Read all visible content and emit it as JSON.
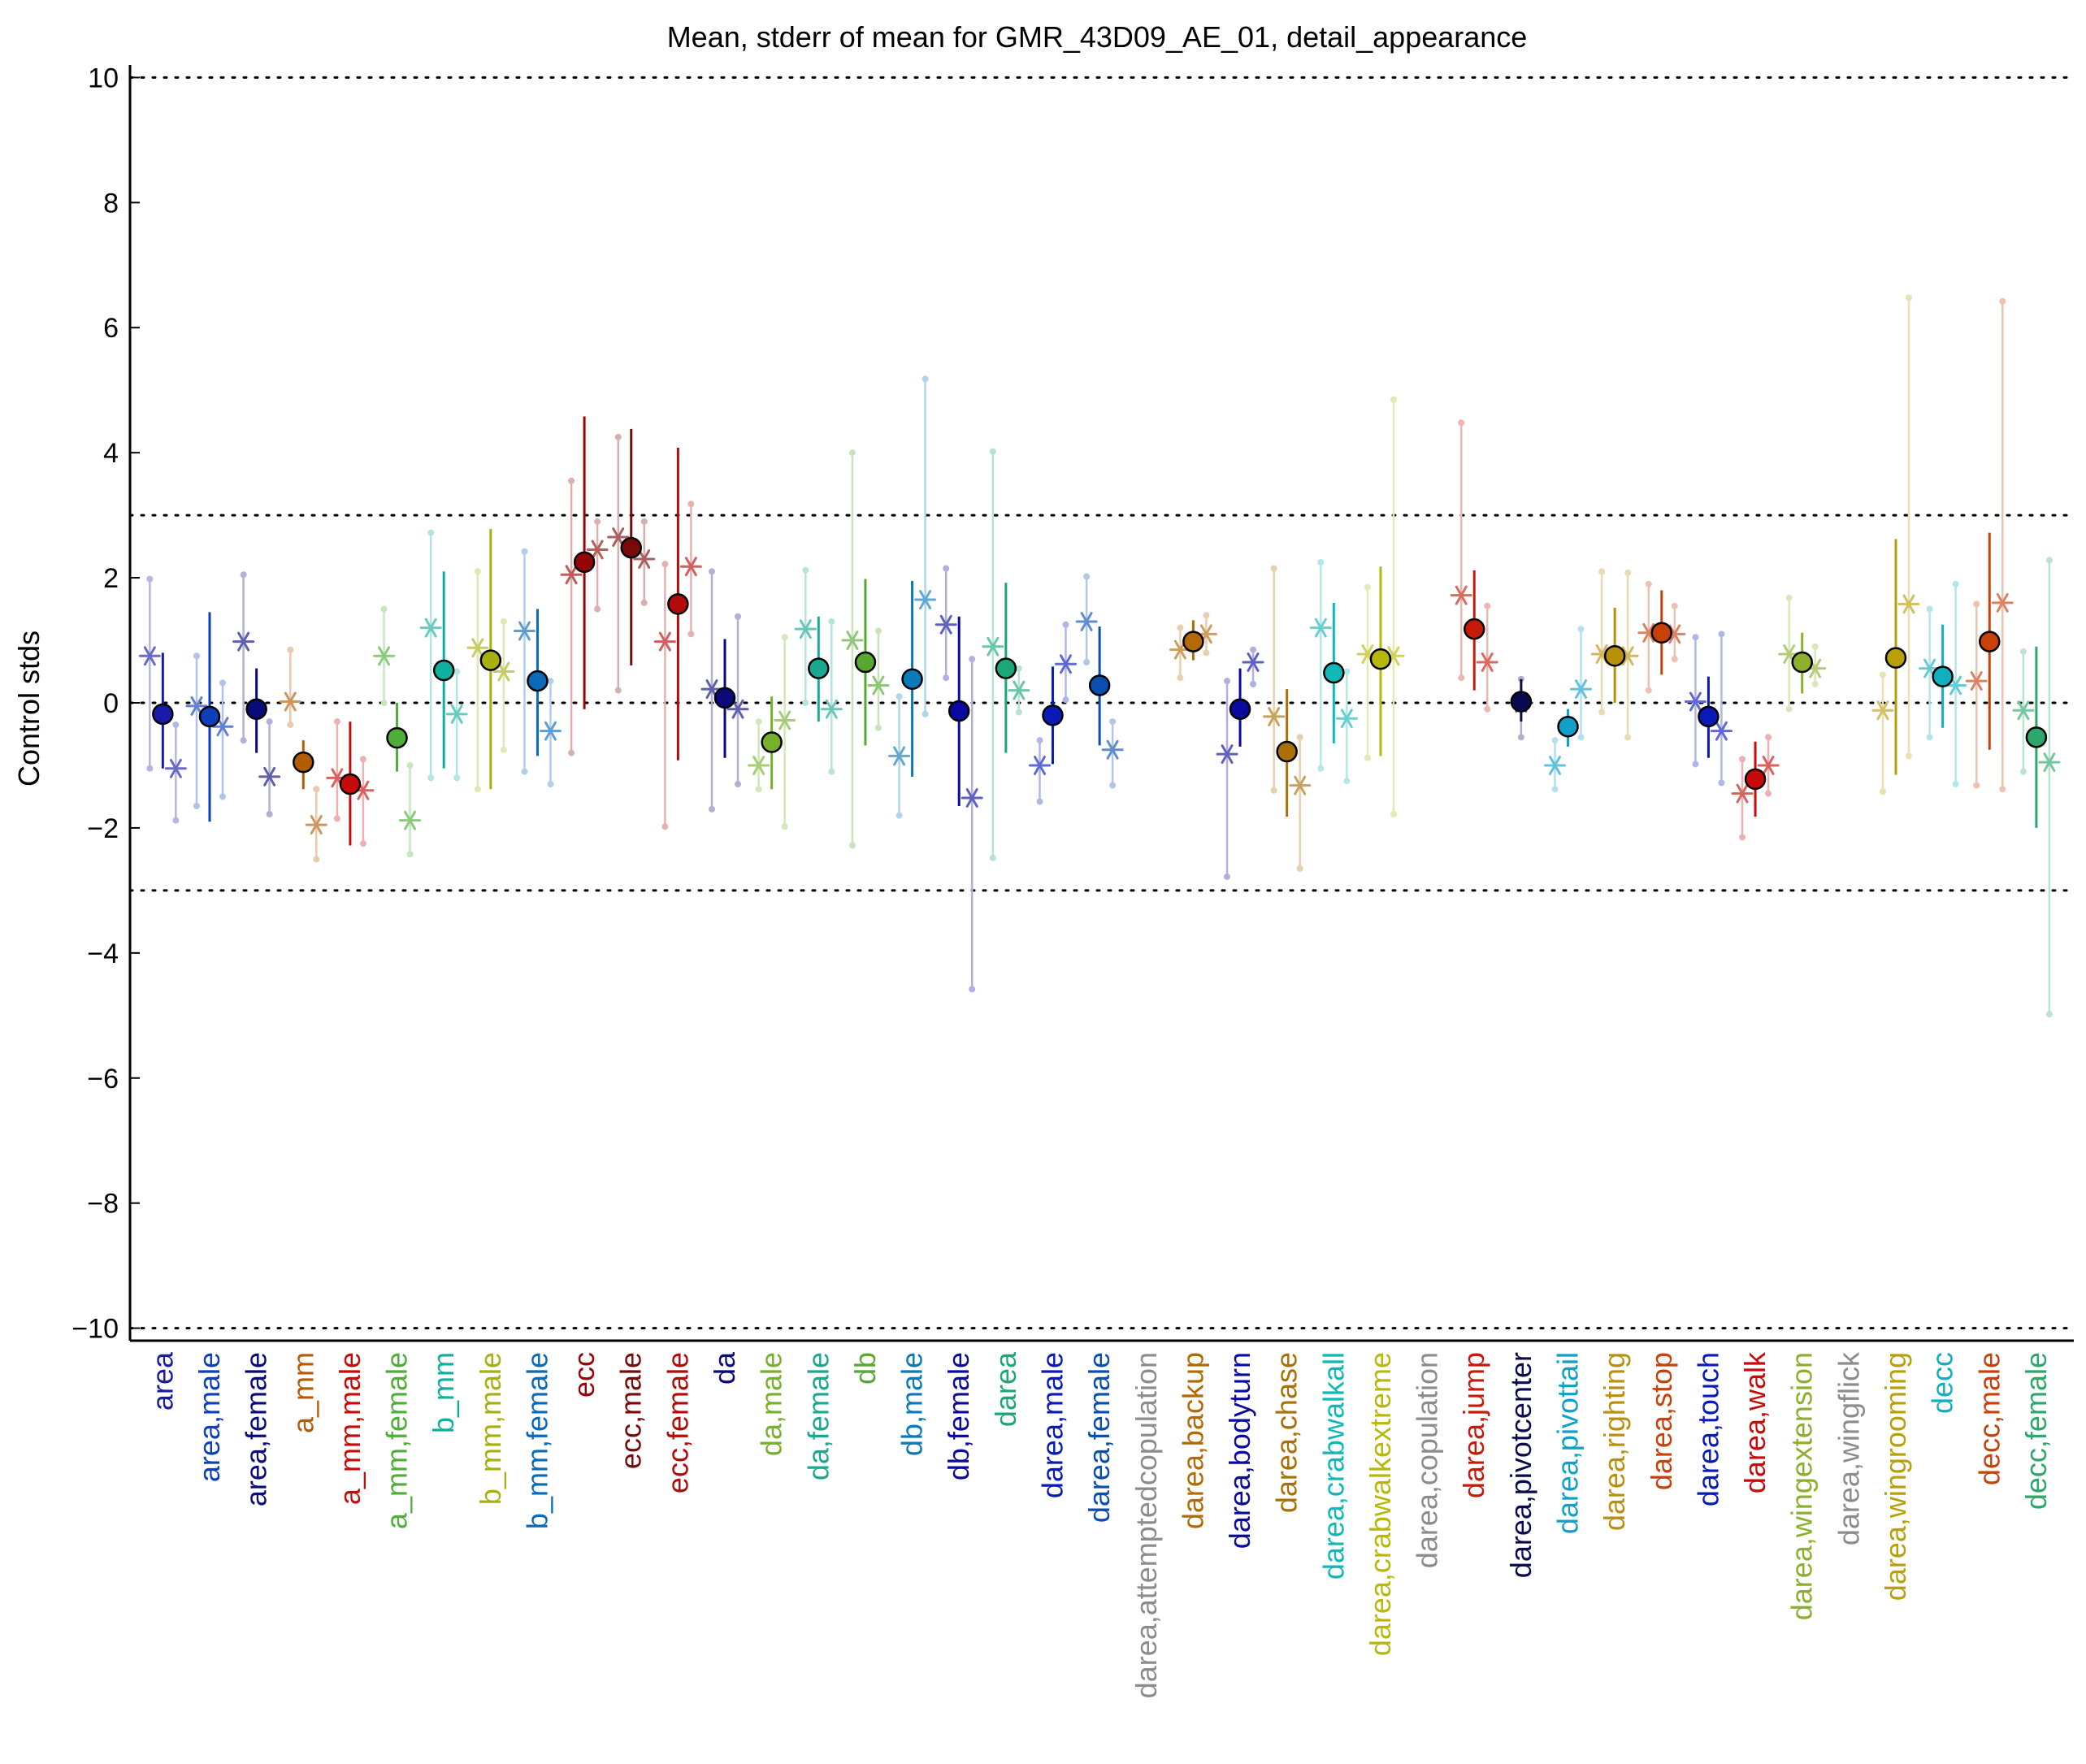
{
  "chart_data": {
    "type": "scatter",
    "title": "Mean, stderr of mean for GMR_43D09_AE_01, detail_appearance",
    "xlabel": "",
    "ylabel": "Control stds",
    "ylim": [
      -10.2,
      10.2
    ],
    "yticks": [
      10,
      8,
      6,
      4,
      2,
      0,
      -2,
      -4,
      -6,
      -8,
      -10
    ],
    "ytick_labels": [
      "10",
      "8",
      "6",
      "4",
      "2",
      "0",
      "−2",
      "−4",
      "−6",
      "−8",
      "−10"
    ],
    "reference_lines": [
      10,
      3,
      0,
      -3,
      -10
    ],
    "categories": [
      {
        "label": "area",
        "color": "#1a1aa8",
        "mean": -0.18,
        "lo": -1.05,
        "hi": 0.8,
        "lines": [
          {
            "v": 0.75,
            "lo": -1.05,
            "hi": 1.98
          },
          {
            "v": -1.05,
            "lo": -1.88,
            "hi": -0.35
          }
        ]
      },
      {
        "label": "area,male",
        "color": "#0d3fb8",
        "mean": -0.22,
        "lo": -1.9,
        "hi": 1.45,
        "lines": [
          {
            "v": -0.05,
            "lo": -1.65,
            "hi": 0.75
          },
          {
            "v": -0.38,
            "lo": -1.5,
            "hi": 0.32
          }
        ]
      },
      {
        "label": "area,female",
        "color": "#0a0a7a",
        "mean": -0.1,
        "lo": -0.8,
        "hi": 0.55,
        "lines": [
          {
            "v": 0.98,
            "lo": -0.6,
            "hi": 2.05
          },
          {
            "v": -1.18,
            "lo": -1.78,
            "hi": -0.3
          }
        ]
      },
      {
        "label": "a_mm",
        "color": "#b35c05",
        "mean": -0.95,
        "lo": -1.38,
        "hi": -0.6,
        "lines": [
          {
            "v": 0.02,
            "lo": -0.35,
            "hi": 0.85
          },
          {
            "v": -1.95,
            "lo": -2.5,
            "hi": -1.38
          }
        ]
      },
      {
        "label": "a_mm,male",
        "color": "#c80a0a",
        "mean": -1.3,
        "lo": -2.28,
        "hi": -0.3,
        "lines": [
          {
            "v": -1.2,
            "lo": -1.85,
            "hi": -0.3
          },
          {
            "v": -1.4,
            "lo": -2.25,
            "hi": -0.9
          }
        ]
      },
      {
        "label": "a_mm,female",
        "color": "#4fae37",
        "mean": -0.56,
        "lo": -1.1,
        "hi": 0.0,
        "lines": [
          {
            "v": 0.75,
            "lo": 0.0,
            "hi": 1.5
          },
          {
            "v": -1.88,
            "lo": -2.42,
            "hi": -1.0
          }
        ]
      },
      {
        "label": "b_mm",
        "color": "#10b0a0",
        "mean": 0.52,
        "lo": -1.05,
        "hi": 2.1,
        "lines": [
          {
            "v": 1.2,
            "lo": -1.2,
            "hi": 2.72
          },
          {
            "v": -0.18,
            "lo": -1.2,
            "hi": 0.5
          }
        ]
      },
      {
        "label": "b_mm,male",
        "color": "#a6b010",
        "mean": 0.68,
        "lo": -1.38,
        "hi": 2.78,
        "lines": [
          {
            "v": 0.88,
            "lo": -1.38,
            "hi": 2.1
          },
          {
            "v": 0.5,
            "lo": -0.75,
            "hi": 1.3
          }
        ]
      },
      {
        "label": "b_mm,female",
        "color": "#0a6ab8",
        "mean": 0.35,
        "lo": -0.85,
        "hi": 1.5,
        "lines": [
          {
            "v": 1.15,
            "lo": -1.1,
            "hi": 2.42
          },
          {
            "v": -0.45,
            "lo": -1.3,
            "hi": 0.35
          }
        ]
      },
      {
        "label": "ecc",
        "color": "#960505",
        "mean": 2.25,
        "lo": -0.1,
        "hi": 4.58,
        "lines": [
          {
            "v": 2.05,
            "lo": -0.8,
            "hi": 3.55
          },
          {
            "v": 2.45,
            "lo": 1.5,
            "hi": 2.9
          }
        ]
      },
      {
        "label": "ecc,male",
        "color": "#7a0a0a",
        "mean": 2.48,
        "lo": 0.6,
        "hi": 4.38,
        "lines": [
          {
            "v": 2.65,
            "lo": 0.2,
            "hi": 4.25
          },
          {
            "v": 2.3,
            "lo": 1.6,
            "hi": 2.9
          }
        ]
      },
      {
        "label": "ecc,female",
        "color": "#b40a0a",
        "mean": 1.58,
        "lo": -0.92,
        "hi": 4.08,
        "lines": [
          {
            "v": 0.98,
            "lo": -1.98,
            "hi": 2.22
          },
          {
            "v": 2.18,
            "lo": 1.1,
            "hi": 3.18
          }
        ]
      },
      {
        "label": "da",
        "color": "#0a0a7a",
        "mean": 0.08,
        "lo": -0.88,
        "hi": 1.02,
        "lines": [
          {
            "v": 0.22,
            "lo": -1.7,
            "hi": 2.1
          },
          {
            "v": -0.1,
            "lo": -1.3,
            "hi": 1.38
          }
        ]
      },
      {
        "label": "da,male",
        "color": "#78b029",
        "mean": -0.63,
        "lo": -1.38,
        "hi": 0.1,
        "lines": [
          {
            "v": -1.0,
            "lo": -1.38,
            "hi": -0.3
          },
          {
            "v": -0.28,
            "lo": -1.98,
            "hi": 1.05
          }
        ]
      },
      {
        "label": "da,female",
        "color": "#1aa891",
        "mean": 0.55,
        "lo": -0.3,
        "hi": 1.38,
        "lines": [
          {
            "v": 1.18,
            "lo": 0.0,
            "hi": 2.12
          },
          {
            "v": -0.1,
            "lo": -1.1,
            "hi": 1.3
          }
        ]
      },
      {
        "label": "db",
        "color": "#57a82e",
        "mean": 0.65,
        "lo": -0.68,
        "hi": 1.98,
        "lines": [
          {
            "v": 1.0,
            "lo": -2.28,
            "hi": 4.0
          },
          {
            "v": 0.28,
            "lo": -0.4,
            "hi": 1.15
          }
        ]
      },
      {
        "label": "db,male",
        "color": "#0a7ab8",
        "mean": 0.38,
        "lo": -1.18,
        "hi": 1.95,
        "lines": [
          {
            "v": -0.85,
            "lo": -1.8,
            "hi": 0.1
          },
          {
            "v": 1.65,
            "lo": -0.18,
            "hi": 5.18
          }
        ]
      },
      {
        "label": "db,female",
        "color": "#0a0aa0",
        "mean": -0.13,
        "lo": -1.65,
        "hi": 1.38,
        "lines": [
          {
            "v": 1.25,
            "lo": 0.4,
            "hi": 2.15
          },
          {
            "v": -1.52,
            "lo": -4.58,
            "hi": 0.7
          }
        ]
      },
      {
        "label": "darea",
        "color": "#1aa878",
        "mean": 0.55,
        "lo": -0.8,
        "hi": 1.92,
        "lines": [
          {
            "v": 0.9,
            "lo": -2.48,
            "hi": 4.02
          },
          {
            "v": 0.2,
            "lo": -0.15,
            "hi": 0.55
          }
        ]
      },
      {
        "label": "darea,male",
        "color": "#0a1ab8",
        "mean": -0.2,
        "lo": -0.98,
        "hi": 0.58,
        "lines": [
          {
            "v": -1.0,
            "lo": -1.58,
            "hi": -0.6
          },
          {
            "v": 0.62,
            "lo": 0.05,
            "hi": 1.25
          }
        ]
      },
      {
        "label": "darea,female",
        "color": "#0a4fb0",
        "mean": 0.28,
        "lo": -0.68,
        "hi": 1.22,
        "lines": [
          {
            "v": 1.3,
            "lo": 0.65,
            "hi": 2.02
          },
          {
            "v": -0.75,
            "lo": -1.32,
            "hi": -0.3
          }
        ]
      },
      {
        "label": "darea,attemptedcopulation",
        "color": "#8c8c8c",
        "mean": null,
        "lo": null,
        "hi": null,
        "lines": []
      },
      {
        "label": "darea,backup",
        "color": "#b36a05",
        "mean": 0.98,
        "lo": 0.68,
        "hi": 1.32,
        "lines": [
          {
            "v": 0.85,
            "lo": 0.4,
            "hi": 1.2
          },
          {
            "v": 1.1,
            "lo": 0.8,
            "hi": 1.4
          }
        ]
      },
      {
        "label": "darea,bodyturn",
        "color": "#0a0aa0",
        "mean": -0.1,
        "lo": -0.7,
        "hi": 0.55,
        "lines": [
          {
            "v": -0.82,
            "lo": -2.78,
            "hi": 0.35
          },
          {
            "v": 0.65,
            "lo": 0.3,
            "hi": 0.85
          }
        ]
      },
      {
        "label": "darea,chase",
        "color": "#a87005",
        "mean": -0.78,
        "lo": -1.82,
        "hi": 0.22,
        "lines": [
          {
            "v": -0.22,
            "lo": -1.4,
            "hi": 2.15
          },
          {
            "v": -1.32,
            "lo": -2.65,
            "hi": -0.55
          }
        ]
      },
      {
        "label": "darea,crabwalkall",
        "color": "#10b8b8",
        "mean": 0.48,
        "lo": -0.65,
        "hi": 1.6,
        "lines": [
          {
            "v": 1.2,
            "lo": -1.05,
            "hi": 2.25
          },
          {
            "v": -0.25,
            "lo": -1.25,
            "hi": 0.5
          }
        ]
      },
      {
        "label": "darea,crabwalkextreme",
        "color": "#b8b80a",
        "mean": 0.7,
        "lo": -0.85,
        "hi": 2.18,
        "lines": [
          {
            "v": 0.78,
            "lo": -0.88,
            "hi": 1.85
          },
          {
            "v": 0.75,
            "lo": -1.78,
            "hi": 4.85
          }
        ]
      },
      {
        "label": "darea,copulation",
        "color": "#8c8c8c",
        "mean": null,
        "lo": null,
        "hi": null,
        "lines": []
      },
      {
        "label": "darea,jump",
        "color": "#c81a0a",
        "mean": 1.18,
        "lo": 0.2,
        "hi": 2.12,
        "lines": [
          {
            "v": 1.72,
            "lo": 0.4,
            "hi": 4.48
          },
          {
            "v": 0.65,
            "lo": -0.1,
            "hi": 1.55
          }
        ]
      },
      {
        "label": "darea,pivotcenter",
        "color": "#0a0a4f",
        "mean": 0.02,
        "lo": -0.3,
        "hi": 0.38,
        "lines": [
          {
            "v": 0.0,
            "lo": -0.55,
            "hi": 0.38
          }
        ]
      },
      {
        "label": "darea,pivottail",
        "color": "#10a0c8",
        "mean": -0.38,
        "lo": -0.7,
        "hi": -0.1,
        "lines": [
          {
            "v": -1.0,
            "lo": -1.38,
            "hi": -0.6
          },
          {
            "v": 0.22,
            "lo": -0.55,
            "hi": 1.18
          }
        ]
      },
      {
        "label": "darea,righting",
        "color": "#b8900a",
        "mean": 0.75,
        "lo": 0.0,
        "hi": 1.52,
        "lines": [
          {
            "v": 0.78,
            "lo": -0.15,
            "hi": 2.1
          },
          {
            "v": 0.75,
            "lo": -0.55,
            "hi": 2.08
          }
        ]
      },
      {
        "label": "darea,stop",
        "color": "#c8400a",
        "mean": 1.12,
        "lo": 0.45,
        "hi": 1.8,
        "lines": [
          {
            "v": 1.12,
            "lo": 0.2,
            "hi": 1.9
          },
          {
            "v": 1.1,
            "lo": 0.7,
            "hi": 1.55
          }
        ]
      },
      {
        "label": "darea,touch",
        "color": "#0a1ab8",
        "mean": -0.22,
        "lo": -0.88,
        "hi": 0.42,
        "lines": [
          {
            "v": 0.02,
            "lo": -0.98,
            "hi": 1.05
          },
          {
            "v": -0.45,
            "lo": -1.28,
            "hi": 1.1
          }
        ]
      },
      {
        "label": "darea,walk",
        "color": "#c80a0a",
        "mean": -1.22,
        "lo": -1.82,
        "hi": -0.62,
        "lines": [
          {
            "v": -1.45,
            "lo": -2.15,
            "hi": -0.9
          },
          {
            "v": -1.0,
            "lo": -1.45,
            "hi": -0.55
          }
        ]
      },
      {
        "label": "darea,wingextension",
        "color": "#8cb02e",
        "mean": 0.65,
        "lo": 0.15,
        "hi": 1.12,
        "lines": [
          {
            "v": 0.78,
            "lo": -0.1,
            "hi": 1.68
          },
          {
            "v": 0.55,
            "lo": 0.3,
            "hi": 0.9
          }
        ]
      },
      {
        "label": "darea,wingflick",
        "color": "#8c8c8c",
        "mean": null,
        "lo": null,
        "hi": null,
        "lines": []
      },
      {
        "label": "darea,wingrooming",
        "color": "#b8a00a",
        "mean": 0.72,
        "lo": -1.15,
        "hi": 2.62,
        "lines": [
          {
            "v": -0.12,
            "lo": -1.42,
            "hi": 0.45
          },
          {
            "v": 1.58,
            "lo": -0.85,
            "hi": 6.48
          }
        ]
      },
      {
        "label": "decc",
        "color": "#10b0c0",
        "mean": 0.42,
        "lo": -0.4,
        "hi": 1.25,
        "lines": [
          {
            "v": 0.55,
            "lo": -0.55,
            "hi": 1.5
          },
          {
            "v": 0.28,
            "lo": -1.3,
            "hi": 1.9
          }
        ]
      },
      {
        "label": "decc,male",
        "color": "#c8400a",
        "mean": 0.98,
        "lo": -0.75,
        "hi": 2.72,
        "lines": [
          {
            "v": 0.35,
            "lo": -1.32,
            "hi": 1.58
          },
          {
            "v": 1.6,
            "lo": -1.38,
            "hi": 6.42
          }
        ]
      },
      {
        "label": "decc,female",
        "color": "#2ea86a",
        "mean": -0.55,
        "lo": -2.0,
        "hi": 0.9,
        "lines": [
          {
            "v": -0.12,
            "lo": -1.1,
            "hi": 0.82
          },
          {
            "v": -0.95,
            "lo": -4.98,
            "hi": 2.28
          }
        ]
      }
    ]
  }
}
